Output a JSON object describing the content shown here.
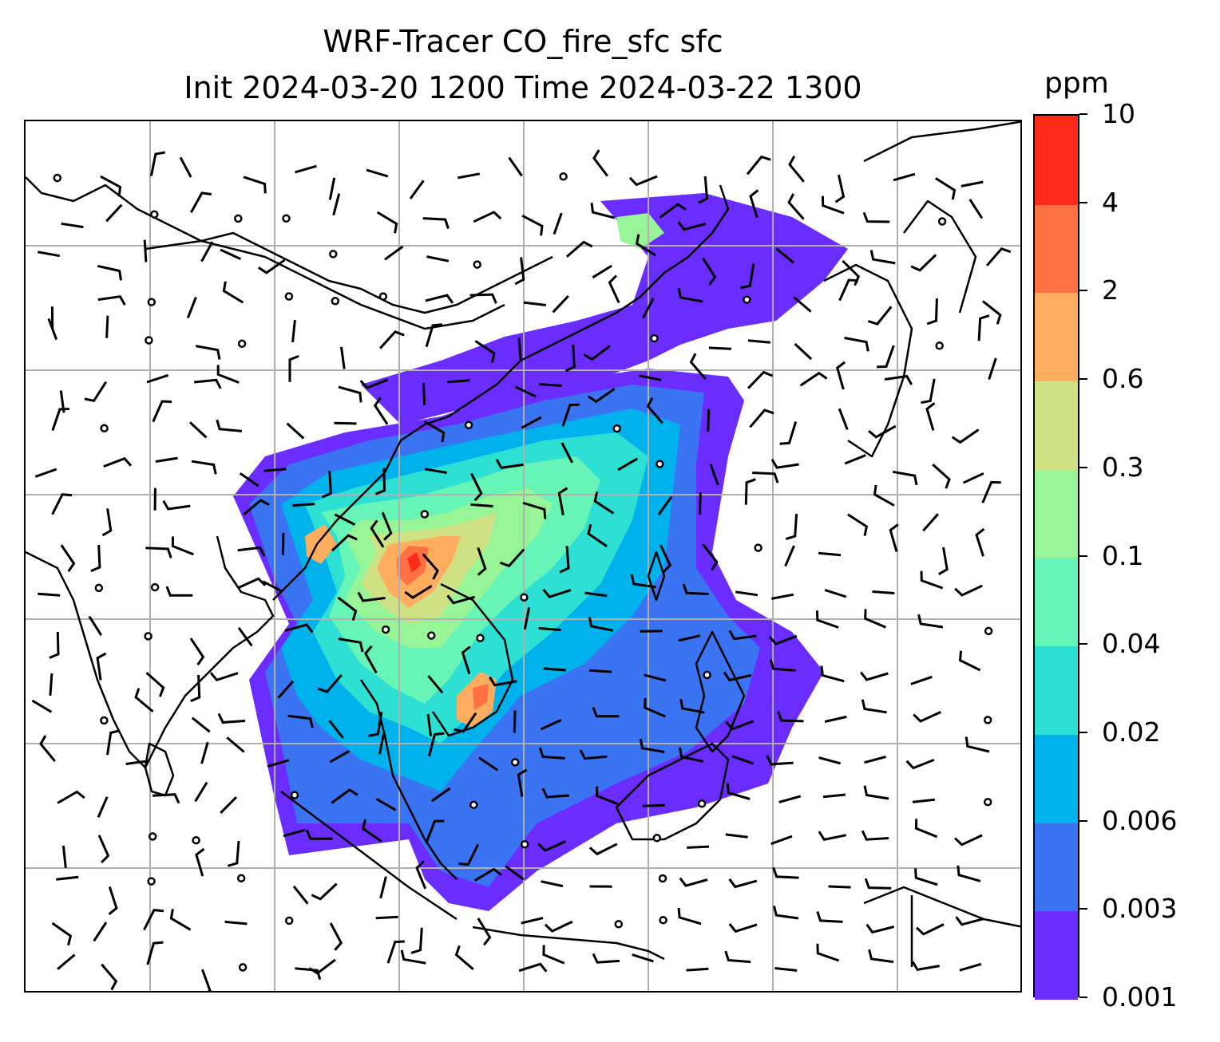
{
  "title": {
    "line1": "WRF-Tracer CO_fire_sfc sfc",
    "line2": "Init 2024-03-20 1200 Time 2024-03-22 1300"
  },
  "colorbar": {
    "unit": "ppm",
    "levels": [
      "0.001",
      "0.003",
      "0.006",
      "0.02",
      "0.04",
      "0.1",
      "0.3",
      "0.6",
      "2",
      "4",
      "10"
    ],
    "colors": [
      "#6a2cff",
      "#3a74f2",
      "#00b2eb",
      "#2edfd3",
      "#66f5b6",
      "#98f597",
      "#d0e184",
      "#ffad5f",
      "#ff7042",
      "#ff2a1a"
    ]
  },
  "map": {
    "gridlines": true,
    "coastline_color": "#000000",
    "gridline_color": "#b0b0b0"
  }
}
